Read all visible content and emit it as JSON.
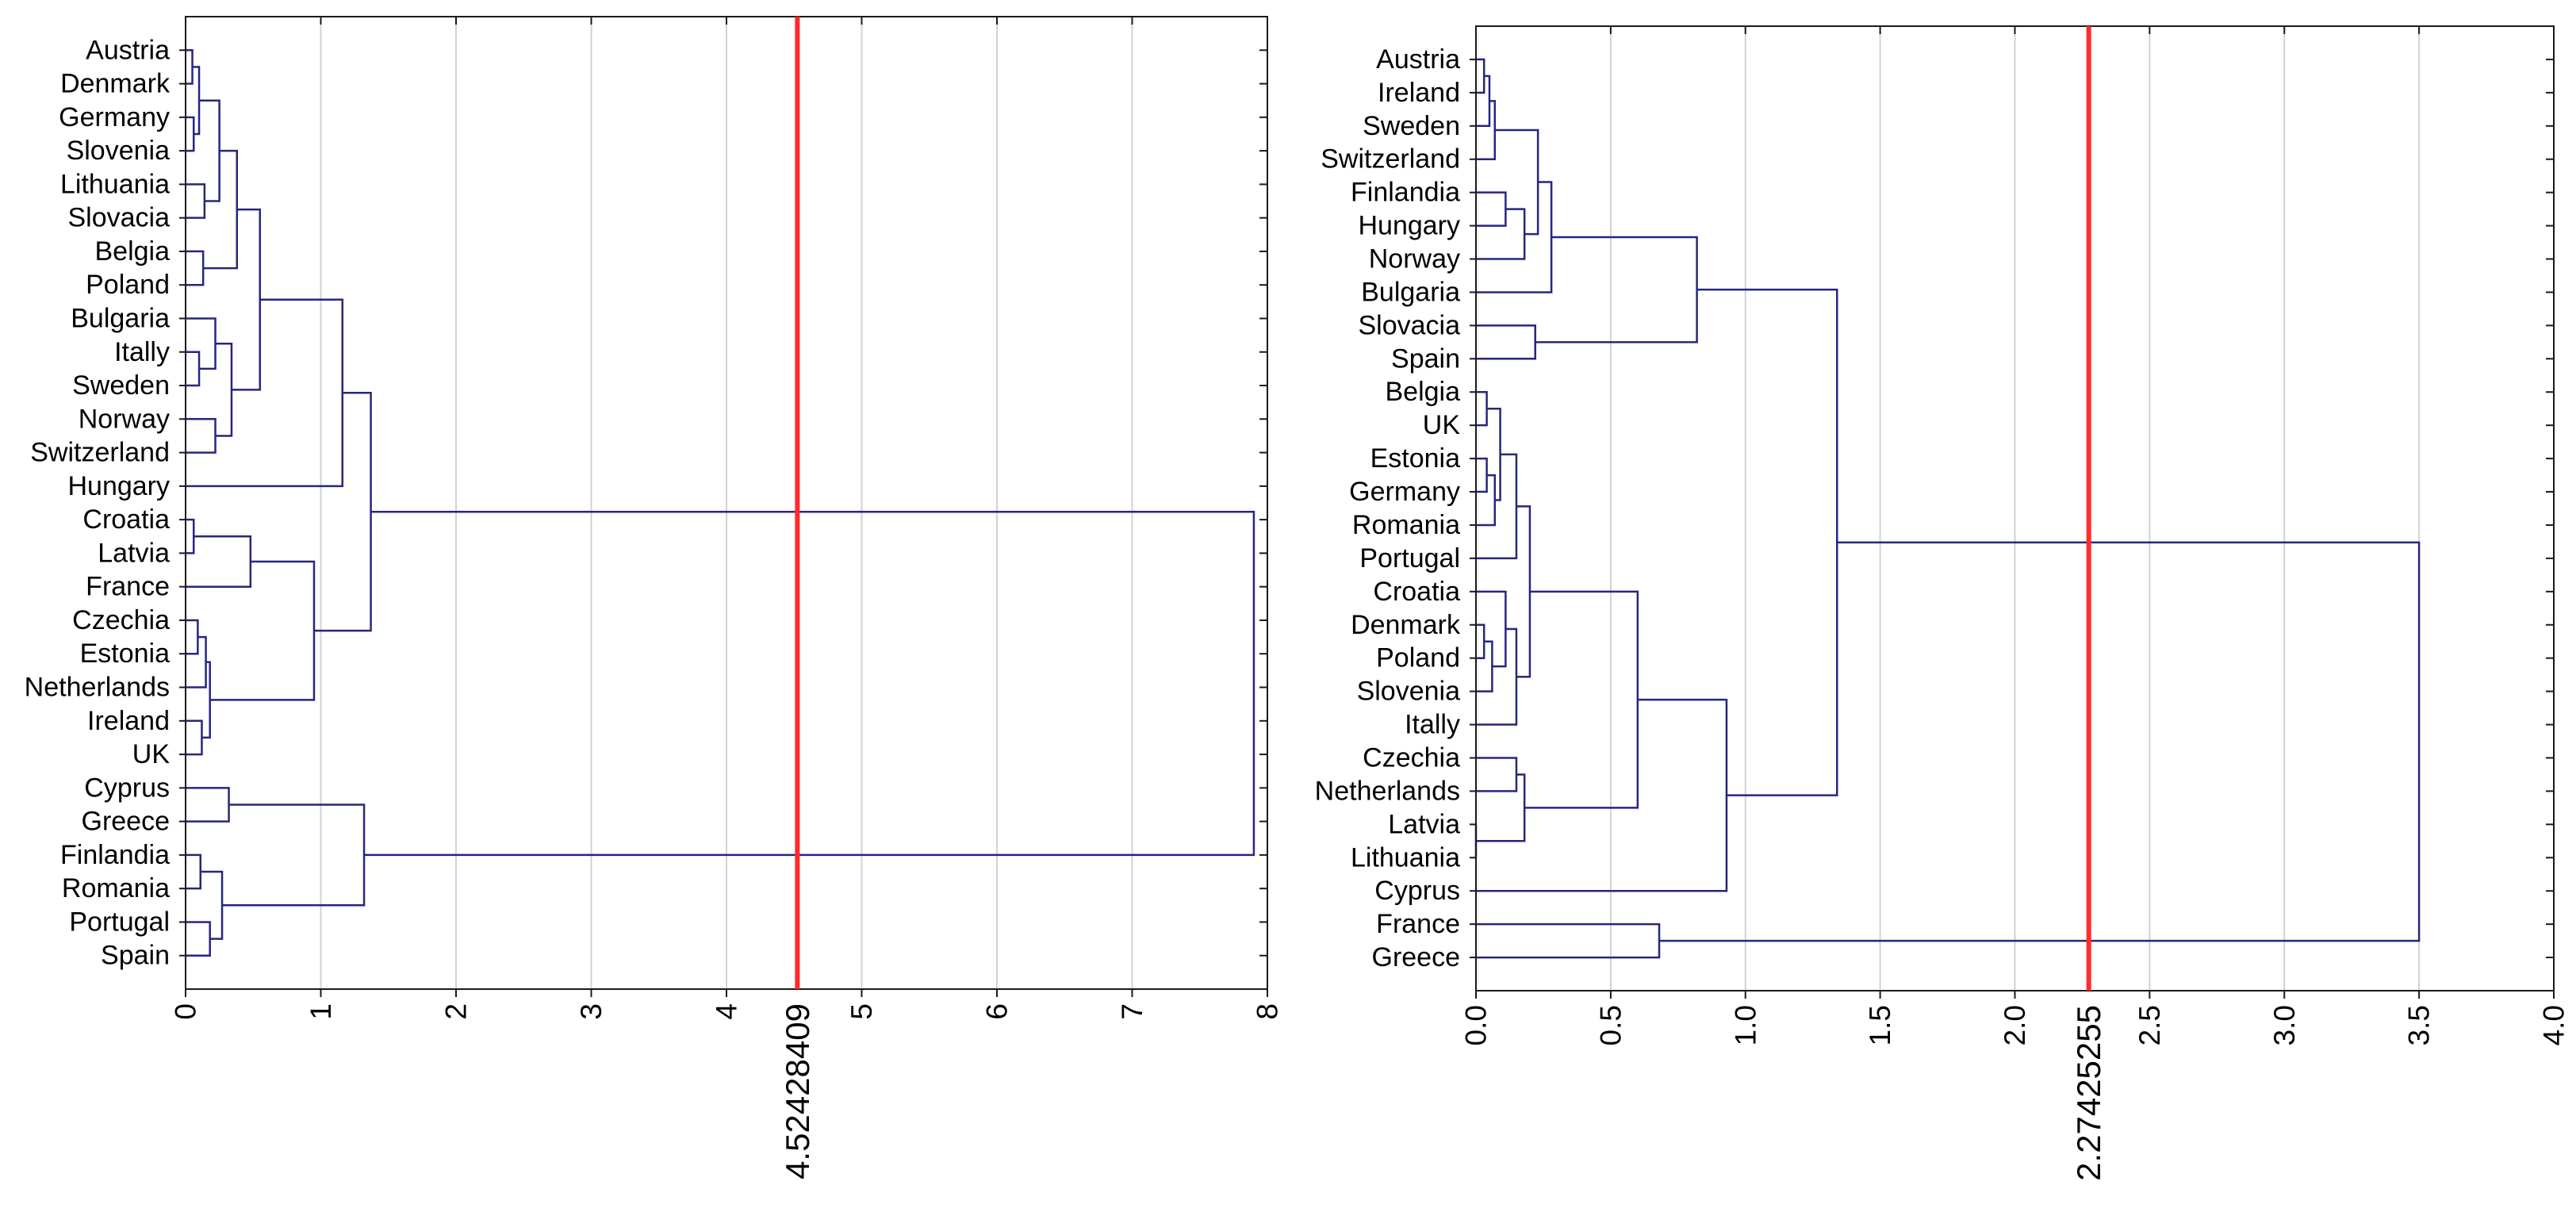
{
  "chart_data": [
    {
      "type": "dendrogram",
      "labels": [
        "Austria",
        "Denmark",
        "Germany",
        "Slovenia",
        "Lithuania",
        "Slovacia",
        "Belgia",
        "Poland",
        "Bulgaria",
        "Itally",
        "Sweden",
        "Norway",
        "Switzerland",
        "Hungary",
        "Croatia",
        "Latvia",
        "France",
        "Czechia",
        "Estonia",
        "Netherlands",
        "Ireland",
        "UK",
        "Cyprus",
        "Greece",
        "Finlandia",
        "Romania",
        "Portugal",
        "Spain"
      ],
      "merges": [
        [
          0,
          1,
          0.05
        ],
        [
          2,
          3,
          0.06
        ],
        [
          28,
          29,
          0.1
        ],
        [
          4,
          5,
          0.14
        ],
        [
          30,
          31,
          0.25
        ],
        [
          6,
          7,
          0.13
        ],
        [
          32,
          33,
          0.38
        ],
        [
          9,
          10,
          0.1
        ],
        [
          8,
          35,
          0.22
        ],
        [
          11,
          12,
          0.22
        ],
        [
          36,
          37,
          0.34
        ],
        [
          34,
          38,
          0.55
        ],
        [
          39,
          13,
          1.16
        ],
        [
          14,
          15,
          0.06
        ],
        [
          41,
          16,
          0.48
        ],
        [
          17,
          18,
          0.09
        ],
        [
          43,
          19,
          0.15
        ],
        [
          20,
          21,
          0.12
        ],
        [
          44,
          45,
          0.18
        ],
        [
          42,
          46,
          0.95
        ],
        [
          40,
          47,
          1.37
        ],
        [
          22,
          23,
          0.32
        ],
        [
          24,
          25,
          0.11
        ],
        [
          26,
          27,
          0.18
        ],
        [
          50,
          51,
          0.27
        ],
        [
          49,
          52,
          1.32
        ],
        [
          48,
          53,
          7.9
        ]
      ],
      "xlim": [
        0,
        8
      ],
      "xticks": [
        0,
        1,
        2,
        3,
        4,
        5,
        6,
        7,
        8
      ],
      "xtick_labels": [
        "0",
        "1",
        "2",
        "3",
        "4",
        "5",
        "6",
        "7",
        "8"
      ],
      "grid": true,
      "cut_line": {
        "value": 4.52428409,
        "label": "4.52428409"
      }
    },
    {
      "type": "dendrogram",
      "labels": [
        "Austria",
        "Ireland",
        "Sweden",
        "Switzerland",
        "Finlandia",
        "Hungary",
        "Norway",
        "Bulgaria",
        "Slovacia",
        "Spain",
        "Belgia",
        "UK",
        "Estonia",
        "Germany",
        "Romania",
        "Portugal",
        "Croatia",
        "Denmark",
        "Poland",
        "Slovenia",
        "Itally",
        "Czechia",
        "Netherlands",
        "Latvia",
        "Lithuania",
        "Cyprus",
        "France",
        "Greece"
      ],
      "merges": [
        [
          0,
          1,
          0.03
        ],
        [
          28,
          2,
          0.05
        ],
        [
          29,
          3,
          0.07
        ],
        [
          4,
          5,
          0.11
        ],
        [
          31,
          6,
          0.18
        ],
        [
          30,
          32,
          0.23
        ],
        [
          33,
          7,
          0.28
        ],
        [
          8,
          9,
          0.22
        ],
        [
          34,
          35,
          0.82
        ],
        [
          10,
          11,
          0.04
        ],
        [
          12,
          13,
          0.04
        ],
        [
          38,
          14,
          0.07
        ],
        [
          37,
          39,
          0.09
        ],
        [
          40,
          15,
          0.15
        ],
        [
          17,
          18,
          0.03
        ],
        [
          42,
          19,
          0.06
        ],
        [
          16,
          43,
          0.11
        ],
        [
          44,
          20,
          0.15
        ],
        [
          41,
          45,
          0.2
        ],
        [
          21,
          22,
          0.15
        ],
        [
          23,
          24,
          0.0
        ],
        [
          47,
          48,
          0.18
        ],
        [
          46,
          49,
          0.6
        ],
        [
          50,
          25,
          0.93
        ],
        [
          36,
          51,
          1.34
        ],
        [
          26,
          27,
          0.68
        ],
        [
          52,
          53,
          3.5
        ]
      ],
      "xlim": [
        0,
        4
      ],
      "xticks": [
        0,
        0.5,
        1,
        1.5,
        2,
        2.5,
        3,
        3.5,
        4
      ],
      "xtick_labels": [
        "0.0",
        "0.5",
        "1.0",
        "1.5",
        "2.0",
        "2.5",
        "3.0",
        "3.5",
        "4.0"
      ],
      "grid": true,
      "cut_line": {
        "value": 2.27425255,
        "label": "2.27425255"
      }
    }
  ],
  "colors": {
    "links": "#262680",
    "cut_line": "#ff2a2a",
    "grid": "#d2d2d2",
    "axis": "#1a1a1a"
  }
}
